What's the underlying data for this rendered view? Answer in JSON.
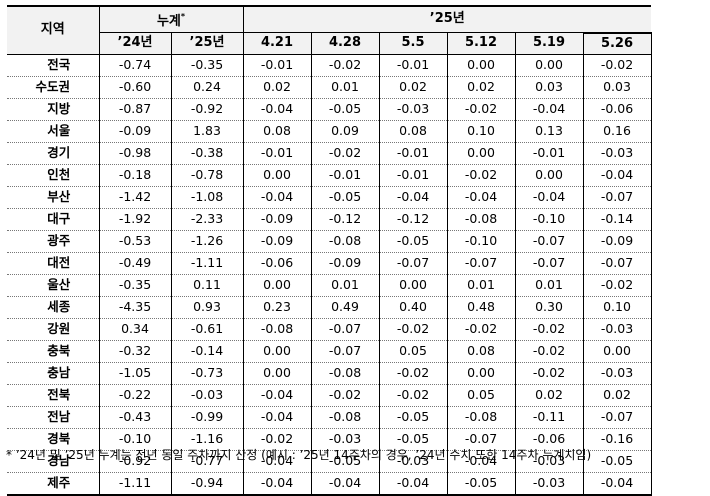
{
  "header": {
    "region": "지역",
    "cumulative": "누계",
    "cumulative_mark": "*",
    "year_group": "’25년",
    "years": [
      "’24년",
      "’25년"
    ],
    "dates": [
      "4.21",
      "4.28",
      "5.5",
      "5.12",
      "5.19",
      "5.26"
    ]
  },
  "rows": [
    {
      "region": "전국",
      "values": [
        "-0.74",
        "-0.35",
        "-0.01",
        "-0.02",
        "-0.01",
        "0.00",
        "0.00",
        "-0.02"
      ]
    },
    {
      "region": "수도권",
      "values": [
        "-0.60",
        "0.24",
        "0.02",
        "0.01",
        "0.02",
        "0.02",
        "0.03",
        "0.03"
      ]
    },
    {
      "region": "지방",
      "values": [
        "-0.87",
        "-0.92",
        "-0.04",
        "-0.05",
        "-0.03",
        "-0.02",
        "-0.04",
        "-0.06"
      ]
    },
    {
      "region": "서울",
      "values": [
        "-0.09",
        "1.83",
        "0.08",
        "0.09",
        "0.08",
        "0.10",
        "0.13",
        "0.16"
      ]
    },
    {
      "region": "경기",
      "values": [
        "-0.98",
        "-0.38",
        "-0.01",
        "-0.02",
        "-0.01",
        "0.00",
        "-0.01",
        "-0.03"
      ]
    },
    {
      "region": "인천",
      "values": [
        "-0.18",
        "-0.78",
        "0.00",
        "-0.01",
        "-0.01",
        "-0.02",
        "0.00",
        "-0.04"
      ]
    },
    {
      "region": "부산",
      "values": [
        "-1.42",
        "-1.08",
        "-0.04",
        "-0.05",
        "-0.04",
        "-0.04",
        "-0.04",
        "-0.07"
      ]
    },
    {
      "region": "대구",
      "values": [
        "-1.92",
        "-2.33",
        "-0.09",
        "-0.12",
        "-0.12",
        "-0.08",
        "-0.10",
        "-0.14"
      ]
    },
    {
      "region": "광주",
      "values": [
        "-0.53",
        "-1.26",
        "-0.09",
        "-0.08",
        "-0.05",
        "-0.10",
        "-0.07",
        "-0.09"
      ]
    },
    {
      "region": "대전",
      "values": [
        "-0.49",
        "-1.11",
        "-0.06",
        "-0.09",
        "-0.07",
        "-0.07",
        "-0.07",
        "-0.07"
      ]
    },
    {
      "region": "울산",
      "values": [
        "-0.35",
        "0.11",
        "0.00",
        "0.01",
        "0.00",
        "0.01",
        "0.01",
        "-0.02"
      ]
    },
    {
      "region": "세종",
      "values": [
        "-4.35",
        "0.93",
        "0.23",
        "0.49",
        "0.40",
        "0.48",
        "0.30",
        "0.10"
      ]
    },
    {
      "region": "강원",
      "values": [
        "0.34",
        "-0.61",
        "-0.08",
        "-0.07",
        "-0.02",
        "-0.02",
        "-0.02",
        "-0.03"
      ]
    },
    {
      "region": "충북",
      "values": [
        "-0.32",
        "-0.14",
        "0.00",
        "-0.07",
        "0.05",
        "0.08",
        "-0.02",
        "0.00"
      ]
    },
    {
      "region": "충남",
      "values": [
        "-1.05",
        "-0.73",
        "0.00",
        "-0.08",
        "-0.02",
        "0.00",
        "-0.02",
        "-0.03"
      ]
    },
    {
      "region": "전북",
      "values": [
        "-0.22",
        "-0.03",
        "-0.04",
        "-0.02",
        "-0.02",
        "0.05",
        "0.02",
        "0.02"
      ]
    },
    {
      "region": "전남",
      "values": [
        "-0.43",
        "-0.99",
        "-0.04",
        "-0.08",
        "-0.05",
        "-0.08",
        "-0.11",
        "-0.07"
      ]
    },
    {
      "region": "경북",
      "values": [
        "-0.10",
        "-1.16",
        "-0.02",
        "-0.03",
        "-0.05",
        "-0.07",
        "-0.06",
        "-0.16"
      ]
    },
    {
      "region": "경남",
      "values": [
        "-0.92",
        "-0.77",
        "-0.04",
        "-0.05",
        "-0.03",
        "-0.04",
        "-0.03",
        "-0.05"
      ]
    },
    {
      "region": "제주",
      "values": [
        "-1.11",
        "-0.94",
        "-0.04",
        "-0.04",
        "-0.04",
        "-0.05",
        "-0.03",
        "-0.04"
      ]
    }
  ],
  "footnote": "* ’24년 및 ’25년 누계는 전년 동일 주차까지 산정 (예시 : ’25년 14주차의 경우, ’24년 수치 또한 14주차 누계치임)"
}
